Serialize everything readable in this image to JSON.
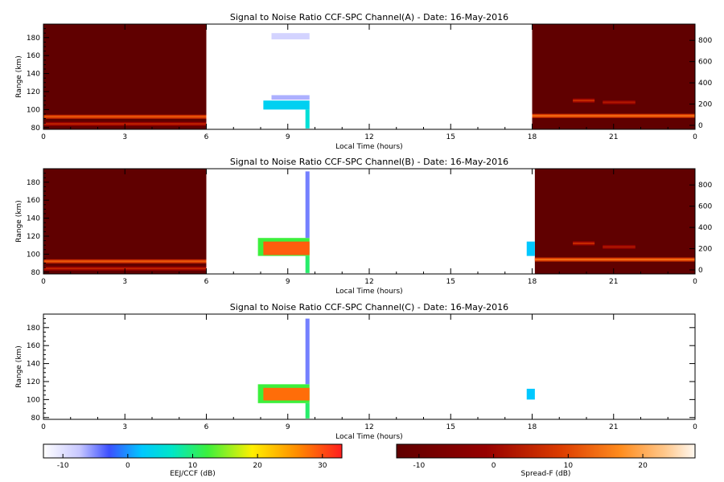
{
  "chart_data": [
    {
      "type": "heatmap",
      "title": "Signal to Noise Ratio CCF-SPC Channel(A) - Date: 16-May-2016",
      "xlabel": "Local Time (hours)",
      "ylabel": "Range (km)",
      "xlim": [
        0,
        24
      ],
      "ylim": [
        78,
        195
      ],
      "xticks": [
        "0",
        "3",
        "6",
        "9",
        "12",
        "15",
        "18",
        "21",
        "0"
      ],
      "yticks": [
        "80",
        "100",
        "120",
        "140",
        "160",
        "180"
      ],
      "right_yticks": [
        "0",
        "200",
        "400",
        "600",
        "800"
      ],
      "spreadf_blocks": [
        [
          0,
          6
        ],
        [
          18,
          24
        ]
      ],
      "spreadf_lines": [
        {
          "t0": 0,
          "t1": 6,
          "alt": 92,
          "db": 12
        },
        {
          "t0": 0,
          "t1": 6,
          "alt": 84,
          "db": 5
        },
        {
          "t0": 18,
          "t1": 24,
          "alt": 93,
          "db": 14
        },
        {
          "t0": 19.5,
          "t1": 20.3,
          "alt": 110,
          "db": 6
        },
        {
          "t0": 20.6,
          "t1": 21.8,
          "alt": 108,
          "db": 3
        }
      ],
      "eej_echoes": [
        {
          "t0": 8.1,
          "t1": 9.8,
          "alt0": 100,
          "alt1": 110,
          "db": 3
        },
        {
          "t0": 8.4,
          "t1": 9.8,
          "alt0": 111,
          "alt1": 116,
          "db": -7
        },
        {
          "t0": 8.4,
          "t1": 9.8,
          "alt0": 178,
          "alt1": 185,
          "db": -9
        },
        {
          "t0": 9.65,
          "t1": 9.8,
          "alt0": 79,
          "alt1": 100,
          "db": 5
        }
      ]
    },
    {
      "type": "heatmap",
      "title": "Signal to Noise Ratio CCF-SPC Channel(B) - Date: 16-May-2016",
      "xlabel": "Local Time (hours)",
      "ylabel": "Range (km)",
      "xlim": [
        0,
        24
      ],
      "ylim": [
        78,
        195
      ],
      "xticks": [
        "0",
        "3",
        "6",
        "9",
        "12",
        "15",
        "18",
        "21",
        "0"
      ],
      "yticks": [
        "80",
        "100",
        "120",
        "140",
        "160",
        "180"
      ],
      "right_yticks": [
        "0",
        "200",
        "400",
        "600",
        "800"
      ],
      "spreadf_blocks": [
        [
          0,
          6
        ],
        [
          18.1,
          24
        ]
      ],
      "spreadf_lines": [
        {
          "t0": 0,
          "t1": 6,
          "alt": 92,
          "db": 12
        },
        {
          "t0": 0,
          "t1": 6,
          "alt": 84,
          "db": 5
        },
        {
          "t0": 18.1,
          "t1": 24,
          "alt": 94,
          "db": 14
        },
        {
          "t0": 19.5,
          "t1": 20.3,
          "alt": 112,
          "db": 6
        },
        {
          "t0": 20.6,
          "t1": 21.8,
          "alt": 108,
          "db": 3
        }
      ],
      "eej_echoes": [
        {
          "t0": 7.9,
          "t1": 9.8,
          "alt0": 98,
          "alt1": 118,
          "db": 12
        },
        {
          "t0": 8.1,
          "t1": 9.8,
          "alt0": 99,
          "alt1": 114,
          "db": 29
        },
        {
          "t0": 9.65,
          "t1": 9.8,
          "alt0": 118,
          "alt1": 192,
          "db": -5
        },
        {
          "t0": 9.65,
          "t1": 9.8,
          "alt0": 79,
          "alt1": 98,
          "db": 10
        },
        {
          "t0": 17.8,
          "t1": 18.1,
          "alt0": 98,
          "alt1": 114,
          "db": 2
        }
      ]
    },
    {
      "type": "heatmap",
      "title": "Signal to Noise Ratio CCF-SPC Channel(C) - Date: 16-May-2016",
      "xlabel": "Local Time (hours)",
      "ylabel": "Range (km)",
      "xlim": [
        0,
        24
      ],
      "ylim": [
        78,
        195
      ],
      "xticks": [
        "0",
        "3",
        "6",
        "9",
        "12",
        "15",
        "18",
        "21",
        "0"
      ],
      "yticks": [
        "80",
        "100",
        "120",
        "140",
        "160",
        "180"
      ],
      "right_yticks": [],
      "spreadf_blocks": [],
      "spreadf_lines": [],
      "eej_echoes": [
        {
          "t0": 7.9,
          "t1": 9.8,
          "alt0": 96,
          "alt1": 117,
          "db": 12
        },
        {
          "t0": 8.1,
          "t1": 9.8,
          "alt0": 99,
          "alt1": 113,
          "db": 28
        },
        {
          "t0": 9.65,
          "t1": 9.8,
          "alt0": 117,
          "alt1": 190,
          "db": -5
        },
        {
          "t0": 9.65,
          "t1": 9.8,
          "alt0": 79,
          "alt1": 96,
          "db": 10
        },
        {
          "t0": 17.8,
          "t1": 18.1,
          "alt0": 100,
          "alt1": 112,
          "db": 2
        }
      ]
    }
  ],
  "colorbars": [
    {
      "label": "EEJ/CCF (dB)",
      "scale": "eej",
      "range": [
        -13,
        33
      ],
      "ticks": [
        -10,
        0,
        10,
        20,
        30
      ]
    },
    {
      "label": "Spread-F (dB)",
      "scale": "spreadf",
      "range": [
        -13,
        27
      ],
      "ticks": [
        -10,
        0,
        10,
        20
      ]
    }
  ]
}
